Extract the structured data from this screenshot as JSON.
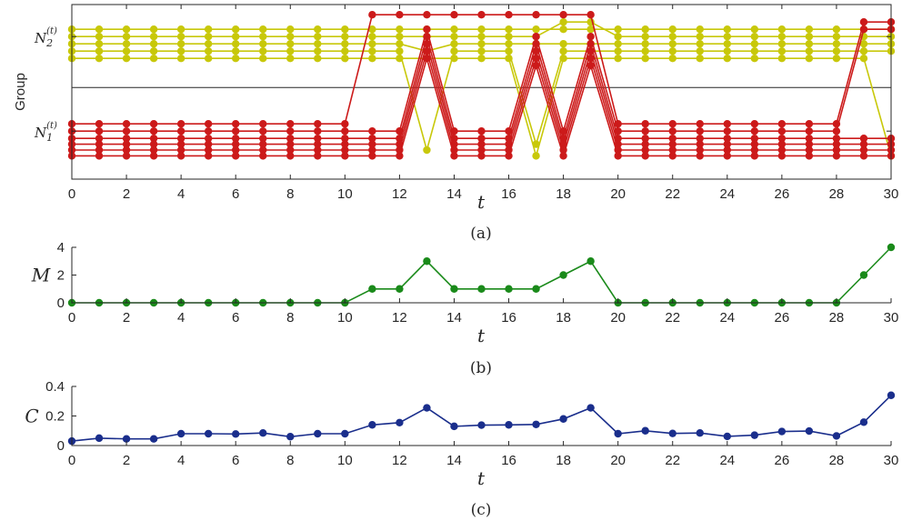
{
  "chart_data": [
    {
      "type": "line",
      "caption": "(a)",
      "xlabel": "t",
      "ylabel": "Group",
      "xlim": [
        0,
        30
      ],
      "ylim": [
        0.2,
        12.2
      ],
      "x_ticks": [
        "0",
        "2",
        "4",
        "6",
        "8",
        "10",
        "12",
        "14",
        "16",
        "18",
        "20",
        "22",
        "24",
        "26",
        "28",
        "30"
      ],
      "y_tick_labels": [
        {
          "base": "N",
          "sub": "1",
          "sup": "(t)",
          "y": 3.5
        },
        {
          "base": "N",
          "sub": "2",
          "sup": "(t)",
          "y": 10
        }
      ],
      "divider_y": 6.5,
      "colors": {
        "group1": "#cc1a1a",
        "group2": "#c8c80a"
      },
      "x": [
        0,
        1,
        2,
        3,
        4,
        5,
        6,
        7,
        8,
        9,
        10,
        11,
        12,
        13,
        14,
        15,
        16,
        17,
        18,
        19,
        20,
        21,
        22,
        23,
        24,
        25,
        26,
        27,
        28,
        29,
        30
      ],
      "series": [
        {
          "group": "red",
          "values": [
            4,
            4,
            4,
            4,
            4,
            4,
            4,
            4,
            4,
            4,
            4,
            11.5,
            11.5,
            11.5,
            11.5,
            11.5,
            11.5,
            11.5,
            11.5,
            11.5,
            4,
            4,
            4,
            4,
            4,
            4,
            4,
            4,
            4,
            11,
            11
          ]
        },
        {
          "group": "red",
          "values": [
            3.5,
            3.5,
            3.5,
            3.5,
            3.5,
            3.5,
            3.5,
            3.5,
            3.5,
            3.5,
            3.5,
            3.5,
            3.5,
            10.5,
            3.5,
            3.5,
            3.5,
            10,
            3.5,
            10,
            3.5,
            3.5,
            3.5,
            3.5,
            3.5,
            3.5,
            3.5,
            3.5,
            3.5,
            10.5,
            10.5
          ]
        },
        {
          "group": "red",
          "values": [
            3,
            3,
            3,
            3,
            3,
            3,
            3,
            3,
            3,
            3,
            3,
            3,
            3,
            10,
            3,
            3,
            3,
            9.5,
            3,
            9.5,
            3,
            3,
            3,
            3,
            3,
            3,
            3,
            3,
            3,
            3,
            3
          ]
        },
        {
          "group": "red",
          "values": [
            2.6,
            2.6,
            2.6,
            2.6,
            2.6,
            2.6,
            2.6,
            2.6,
            2.6,
            2.6,
            2.6,
            2.6,
            2.6,
            9.5,
            2.6,
            2.6,
            2.6,
            9,
            2.6,
            9,
            2.6,
            2.6,
            2.6,
            2.6,
            2.6,
            2.6,
            2.6,
            2.6,
            2.6,
            2.6,
            2.6
          ]
        },
        {
          "group": "red",
          "values": [
            2.2,
            2.2,
            2.2,
            2.2,
            2.2,
            2.2,
            2.2,
            2.2,
            2.2,
            2.2,
            2.2,
            2.2,
            2.2,
            9,
            2.2,
            2.2,
            2.2,
            8.5,
            2.2,
            8.5,
            2.2,
            2.2,
            2.2,
            2.2,
            2.2,
            2.2,
            2.2,
            2.2,
            2.2,
            2.2,
            2.2
          ]
        },
        {
          "group": "red",
          "values": [
            1.8,
            1.8,
            1.8,
            1.8,
            1.8,
            1.8,
            1.8,
            1.8,
            1.8,
            1.8,
            1.8,
            1.8,
            1.8,
            8.5,
            1.8,
            1.8,
            1.8,
            8,
            1.8,
            8,
            1.8,
            1.8,
            1.8,
            1.8,
            1.8,
            1.8,
            1.8,
            1.8,
            1.8,
            1.8,
            1.8
          ]
        },
        {
          "group": "yellow",
          "values": [
            10.5,
            10.5,
            10.5,
            10.5,
            10.5,
            10.5,
            10.5,
            10.5,
            10.5,
            10.5,
            10.5,
            10.5,
            10.5,
            10.5,
            10.5,
            10.5,
            10.5,
            10.5,
            10.5,
            10.5,
            10.5,
            10.5,
            10.5,
            10.5,
            10.5,
            10.5,
            10.5,
            10.5,
            10.5,
            10.5,
            10.5
          ]
        },
        {
          "group": "yellow",
          "values": [
            10,
            10,
            10,
            10,
            10,
            10,
            10,
            10,
            10,
            10,
            10,
            10,
            10,
            10,
            10,
            10,
            10,
            10,
            11,
            11,
            10,
            10,
            10,
            10,
            10,
            10,
            10,
            10,
            10,
            10,
            10
          ]
        },
        {
          "group": "yellow",
          "values": [
            9.5,
            9.5,
            9.5,
            9.5,
            9.5,
            9.5,
            9.5,
            9.5,
            9.5,
            9.5,
            9.5,
            9.5,
            9.5,
            9,
            9.5,
            9.5,
            9.5,
            9.5,
            9.5,
            9.5,
            9.5,
            9.5,
            9.5,
            9.5,
            9.5,
            9.5,
            9.5,
            9.5,
            9.5,
            9.5,
            9.5
          ]
        },
        {
          "group": "yellow",
          "values": [
            9,
            9,
            9,
            9,
            9,
            9,
            9,
            9,
            9,
            9,
            9,
            9,
            9,
            2.2,
            9,
            9,
            9,
            2.6,
            9,
            9,
            9,
            9,
            9,
            9,
            9,
            9,
            9,
            9,
            9,
            9,
            9
          ]
        },
        {
          "group": "yellow",
          "values": [
            8.5,
            8.5,
            8.5,
            8.5,
            8.5,
            8.5,
            8.5,
            8.5,
            8.5,
            8.5,
            8.5,
            8.5,
            8.5,
            8.5,
            8.5,
            8.5,
            8.5,
            1.8,
            8.5,
            8.5,
            8.5,
            8.5,
            8.5,
            8.5,
            8.5,
            8.5,
            8.5,
            8.5,
            8.5,
            8.5,
            1.8
          ]
        }
      ]
    },
    {
      "type": "line",
      "caption": "(b)",
      "xlabel": "t",
      "ylabel": "M",
      "xlim": [
        0,
        30
      ],
      "ylim": [
        0,
        4
      ],
      "y_ticks": [
        "0",
        "2",
        "4"
      ],
      "x_ticks": [
        "0",
        "2",
        "4",
        "6",
        "8",
        "10",
        "12",
        "14",
        "16",
        "18",
        "20",
        "22",
        "24",
        "26",
        "28",
        "30"
      ],
      "color": "#1a8a1a",
      "x": [
        0,
        1,
        2,
        3,
        4,
        5,
        6,
        7,
        8,
        9,
        10,
        11,
        12,
        13,
        14,
        15,
        16,
        17,
        18,
        19,
        20,
        21,
        22,
        23,
        24,
        25,
        26,
        27,
        28,
        29,
        30
      ],
      "values": [
        0,
        0,
        0,
        0,
        0,
        0,
        0,
        0,
        0,
        0,
        0,
        1,
        1,
        3,
        1,
        1,
        1,
        1,
        2,
        3,
        0,
        0,
        0,
        0,
        0,
        0,
        0,
        0,
        0,
        2,
        4
      ]
    },
    {
      "type": "line",
      "caption": "(c)",
      "xlabel": "t",
      "ylabel": "C",
      "xlim": [
        0,
        30
      ],
      "ylim": [
        0,
        0.4
      ],
      "y_ticks": [
        "0",
        "0.2",
        "0.4"
      ],
      "x_ticks": [
        "0",
        "2",
        "4",
        "6",
        "8",
        "10",
        "12",
        "14",
        "16",
        "18",
        "20",
        "22",
        "24",
        "26",
        "28",
        "30"
      ],
      "color": "#1a2e8c",
      "x": [
        0,
        1,
        2,
        3,
        4,
        5,
        6,
        7,
        8,
        9,
        10,
        11,
        12,
        13,
        14,
        15,
        16,
        17,
        18,
        19,
        20,
        21,
        22,
        23,
        24,
        25,
        26,
        27,
        28,
        29,
        30
      ],
      "values": [
        0.03,
        0.05,
        0.045,
        0.045,
        0.08,
        0.08,
        0.078,
        0.085,
        0.06,
        0.08,
        0.08,
        0.14,
        0.155,
        0.255,
        0.13,
        0.138,
        0.14,
        0.143,
        0.18,
        0.255,
        0.08,
        0.1,
        0.082,
        0.085,
        0.062,
        0.07,
        0.095,
        0.098,
        0.065,
        0.158,
        0.34
      ]
    }
  ]
}
